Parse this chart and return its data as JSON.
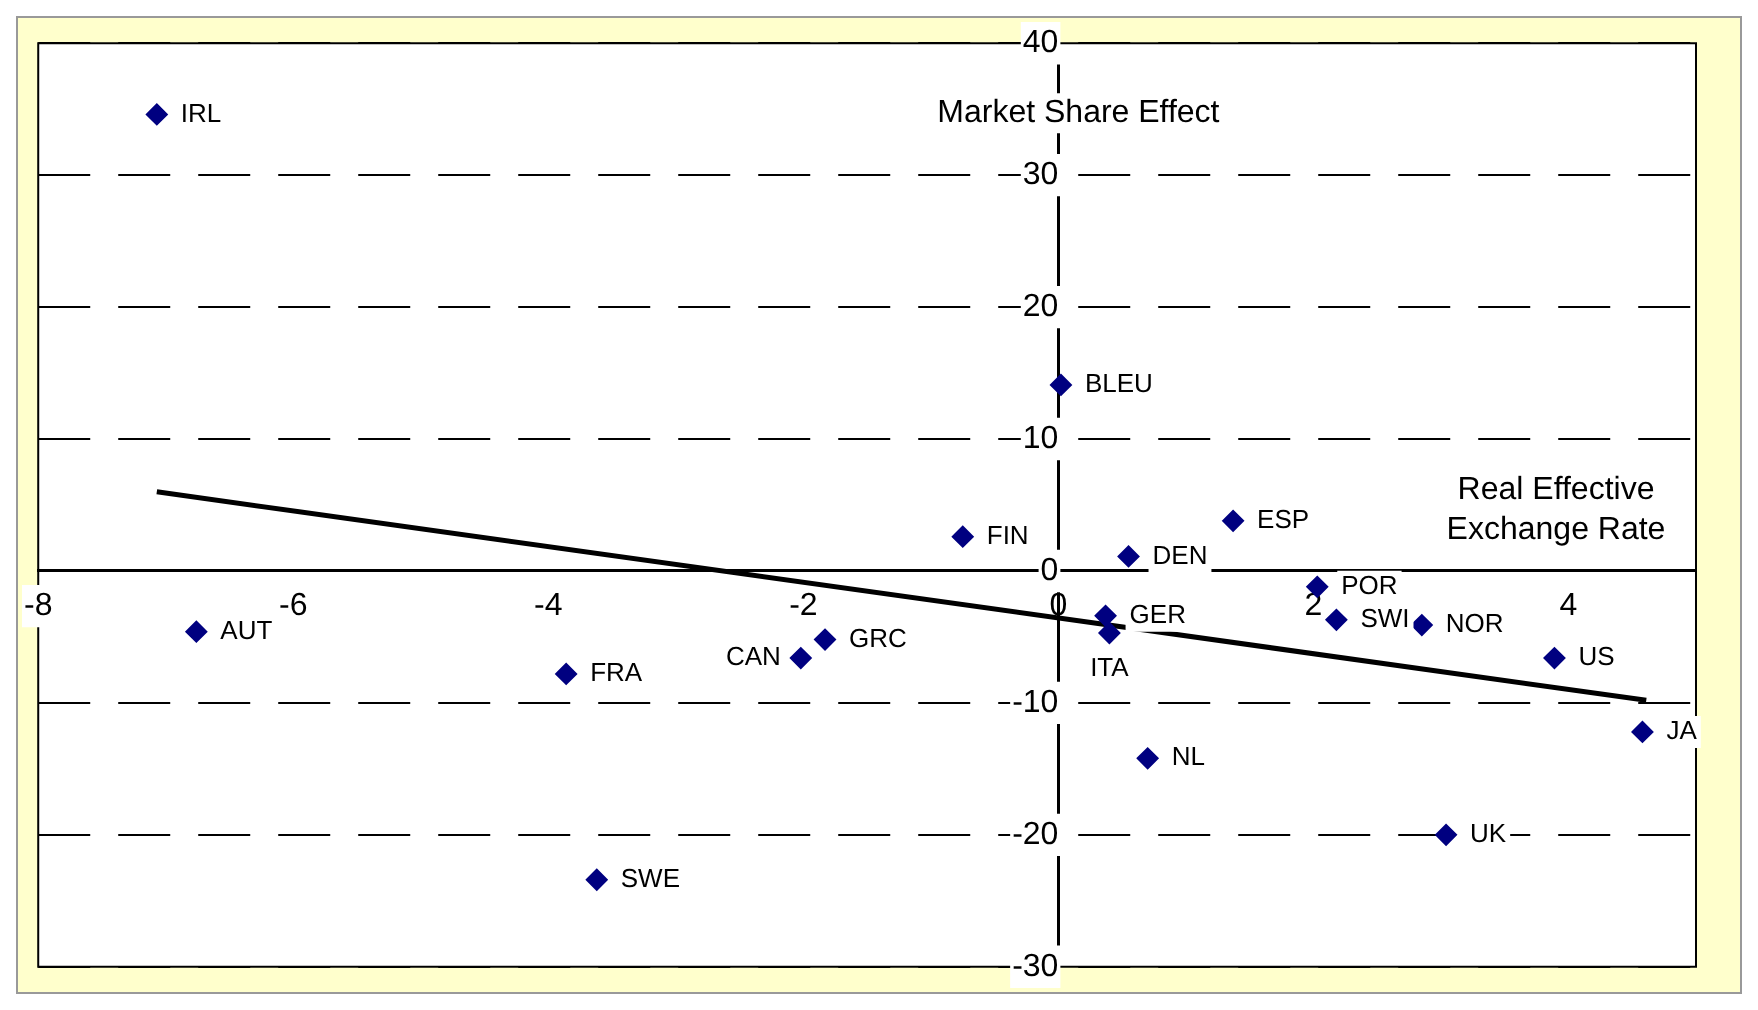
{
  "chart_data": {
    "type": "scatter",
    "xlabel": "Real Effective Exchange Rate",
    "ylabel": "Market Share Effect",
    "xlim": [
      -8,
      5
    ],
    "ylim": [
      -30,
      40
    ],
    "xticks": [
      -8,
      -6,
      -4,
      -2,
      0,
      2,
      4
    ],
    "yticks": [
      -30,
      -20,
      -10,
      0,
      10,
      20,
      30,
      40
    ],
    "grid": "y",
    "legend": false,
    "marker": "diamond",
    "series": [
      {
        "type": "scatter",
        "color": "#000080",
        "x": [
          -7.07,
          -6.76,
          -3.86,
          -3.62,
          -2.02,
          -1.83,
          -0.75,
          0.02,
          0.55,
          0.37,
          0.4,
          0.7,
          1.37,
          2.03,
          2.18,
          2.85,
          3.89,
          3.04,
          4.58
        ],
        "values": [
          34.6,
          -4.6,
          -7.8,
          -23.4,
          -6.6,
          -5.2,
          2.6,
          14.1,
          1.1,
          -3.4,
          -4.7,
          -14.2,
          3.8,
          -1.2,
          -3.7,
          -4.1,
          -6.6,
          -20,
          -12.2
        ]
      },
      {
        "type": "line",
        "color": "#000000",
        "marker": "none",
        "x": [
          -7.07,
          4.61
        ],
        "values": [
          6,
          -9.8
        ]
      }
    ],
    "annotations": [
      {
        "text": "IRL",
        "x": -7.07,
        "y": 34.6
      },
      {
        "text": "AUT",
        "x": -6.76,
        "y": -4.6
      },
      {
        "text": "FRA",
        "x": -3.86,
        "y": -7.8
      },
      {
        "text": "SWE",
        "x": -3.62,
        "y": -23.4
      },
      {
        "text": "CAN",
        "x": -2.02,
        "y": -6.6
      },
      {
        "text": "GRC",
        "x": -1.83,
        "y": -5.2
      },
      {
        "text": "FIN",
        "x": -0.75,
        "y": 2.6
      },
      {
        "text": "BLEU",
        "x": 0.02,
        "y": 14.1
      },
      {
        "text": "DEN",
        "x": 0.55,
        "y": 1.1
      },
      {
        "text": "GER",
        "x": 0.37,
        "y": -3.4
      },
      {
        "text": "ITA",
        "x": 0.4,
        "y": -4.7
      },
      {
        "text": "NL",
        "x": 0.7,
        "y": -14.2
      },
      {
        "text": "ESP",
        "x": 1.37,
        "y": 3.8
      },
      {
        "text": "POR",
        "x": 2.03,
        "y": -1.2
      },
      {
        "text": "SWI",
        "x": 2.18,
        "y": -3.7
      },
      {
        "text": "NOR",
        "x": 2.85,
        "y": -4.1
      },
      {
        "text": "US",
        "x": 3.89,
        "y": -6.6
      },
      {
        "text": "UK",
        "x": 3.04,
        "y": -20
      },
      {
        "text": "JA",
        "x": 4.58,
        "y": -12.2
      }
    ]
  }
}
